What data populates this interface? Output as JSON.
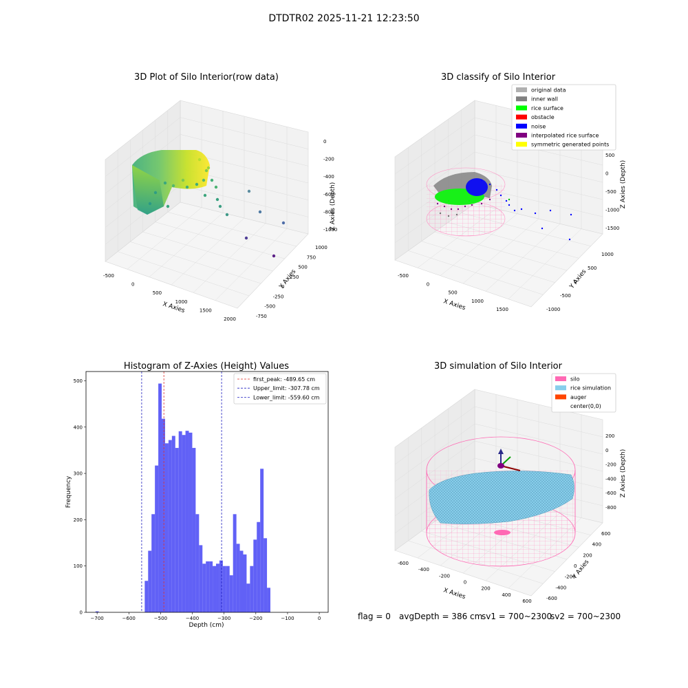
{
  "figure": {
    "suptitle": "DTDTR02 2025-11-21 12:23:50",
    "footer": {
      "flag": "flag = 0",
      "avg": "avgDepth = 386 cm",
      "sv1": "sv1 = 700~2300",
      "sv2": "sv2 = 700~2300"
    }
  },
  "colors": {
    "hist_bar": "#5050f5",
    "first_peak": "#e0302a",
    "limits": "#2020c0",
    "silo": "#ff69b4",
    "rice_sim": "#87ceeb",
    "auger": "#ff4500",
    "rice_surface": "#00ff00",
    "noise": "#0000ff",
    "inner_wall": "#808080",
    "interpolated": "#800080"
  },
  "chart_data": [
    {
      "type": "scatter",
      "panel": "raw",
      "title": "3D Plot of Silo Interior(row data)",
      "xlabel": "X Axies",
      "ylabel": "Y Axies",
      "zlabel": "Z Axies (Depth)",
      "x_ticks": [
        "-500",
        "0",
        "500",
        "1000",
        "1500",
        "2000"
      ],
      "y_ticks": [
        "1000",
        "750",
        "500",
        "250",
        "0",
        "-250",
        "-500",
        "-750"
      ],
      "z_ticks": [
        "0",
        "-200",
        "-400",
        "-600",
        "-800",
        "-1000"
      ],
      "grid": true
    },
    {
      "type": "scatter",
      "panel": "classify",
      "title": "3D classify of Silo Interior",
      "xlabel": "X Axies",
      "ylabel": "Y Axies",
      "zlabel": "Z Axies (Depth)",
      "x_ticks": [
        "-500",
        "0",
        "500",
        "1000",
        "1500"
      ],
      "y_ticks": [
        "1000",
        "500",
        "0",
        "-500",
        "-1000"
      ],
      "z_ticks": [
        "500",
        "0",
        "-500",
        "-1000",
        "-1500"
      ],
      "legend": [
        {
          "label": "original data",
          "color": "#b0b0b0"
        },
        {
          "label": "inner wall",
          "color": "#808080"
        },
        {
          "label": "rice surface",
          "color": "#00ff00"
        },
        {
          "label": "obstacle",
          "color": "#ff0000"
        },
        {
          "label": "noise",
          "color": "#0000ff"
        },
        {
          "label": "interpolated rice surface",
          "color": "#800080"
        },
        {
          "label": "symmetric generated points",
          "color": "#ffff00"
        }
      ],
      "legend_position": "top-right",
      "grid": true
    },
    {
      "type": "bar",
      "panel": "histogram",
      "title": "Histogram of Z-Axies (Height) Values",
      "xlabel": "Depth (cm)",
      "ylabel": "Frequency",
      "xlim": [
        -735,
        28
      ],
      "ylim": [
        0,
        520
      ],
      "x_ticks": [
        -700,
        -600,
        -500,
        -400,
        -300,
        -200,
        -100,
        0
      ],
      "y_ticks": [
        0,
        100,
        200,
        300,
        400,
        500
      ],
      "bin_start": -550,
      "bin_width": 10.7,
      "values": [
        68,
        133,
        212,
        317,
        494,
        418,
        365,
        372,
        381,
        355,
        391,
        383,
        392,
        388,
        355,
        212,
        145,
        105,
        110,
        110,
        100,
        105,
        112,
        100,
        100,
        80,
        212,
        148,
        133,
        125,
        62,
        100,
        157,
        195,
        310,
        160,
        53
      ],
      "outlier_bin": {
        "x": -700,
        "value": 2
      },
      "vlines": [
        {
          "x": -489.65,
          "style": "first_peak",
          "label": "first_peak: -489.65 cm"
        },
        {
          "x": -307.78,
          "style": "limits",
          "label": "Upper_limit: -307.78 cm"
        },
        {
          "x": -559.6,
          "style": "limits",
          "label": "Lower_limit: -559.60 cm"
        }
      ],
      "legend_position": "top-right"
    },
    {
      "type": "area",
      "panel": "simulation",
      "title": "3D simulation of Silo Interior",
      "xlabel": "X Axies",
      "ylabel": "Y Axies",
      "zlabel": "Z Axies (Depth)",
      "x_ticks": [
        "-600",
        "-400",
        "-200",
        "0",
        "200",
        "400",
        "600"
      ],
      "y_ticks": [
        "600",
        "400",
        "200",
        "0",
        "-200",
        "-400",
        "-600"
      ],
      "z_ticks": [
        "200",
        "0",
        "-200",
        "-400",
        "-600",
        "-800"
      ],
      "legend": [
        {
          "label": "silo",
          "color": "#ff69b4"
        },
        {
          "label": "rice simulation",
          "color": "#87ceeb"
        },
        {
          "label": "auger",
          "color": "#ff4500"
        },
        {
          "label": "center(0,0)",
          "color": "#ffffff"
        }
      ],
      "legend_position": "top-right"
    }
  ]
}
